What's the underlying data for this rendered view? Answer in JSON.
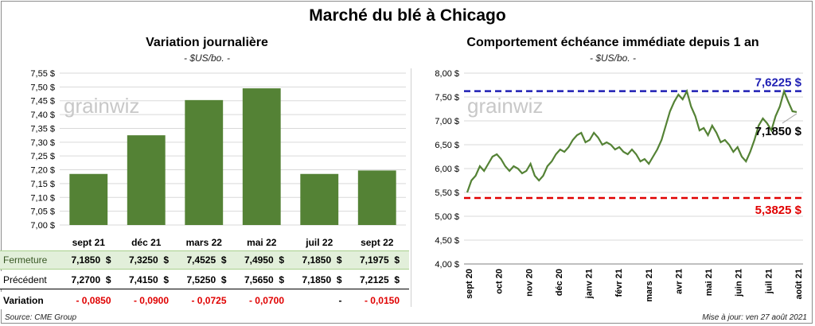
{
  "title": "Marché du blé à Chicago",
  "left": {
    "subtitle": "Variation journalière",
    "unit": "- $US/bo. -",
    "watermark": "grainwiz",
    "chart_data": {
      "type": "bar",
      "categories": [
        "sept 21",
        "déc 21",
        "mars 22",
        "mai 22",
        "juil 22",
        "sept 22"
      ],
      "values": [
        7.185,
        7.325,
        7.4525,
        7.495,
        7.185,
        7.1975
      ],
      "ylim": [
        7.0,
        7.55
      ],
      "yticks": [
        "7,00 $",
        "7,05 $",
        "7,10 $",
        "7,15 $",
        "7,20 $",
        "7,25 $",
        "7,30 $",
        "7,35 $",
        "7,40 $",
        "7,45 $",
        "7,50 $",
        "7,55 $"
      ],
      "bar_color": "#548235",
      "grid": true
    },
    "table": {
      "rows": [
        {
          "label": "Fermeture",
          "values": [
            "7,1850  $",
            "7,3250  $",
            "7,4525  $",
            "7,4950  $",
            "7,1850  $",
            "7,1975  $"
          ],
          "bg": "#e2efda"
        },
        {
          "label": "Précédent",
          "values": [
            "7,2700  $",
            "7,4150  $",
            "7,5250  $",
            "7,5650  $",
            "7,1850  $",
            "7,2125  $"
          ],
          "bg": "#ffffff"
        },
        {
          "label": "Variation",
          "values": [
            "- 0,0850",
            "- 0,0900",
            "- 0,0725",
            "- 0,0700",
            "-",
            "- 0,0150"
          ],
          "bg": "#ffffff"
        }
      ],
      "negative_color": "#e00000"
    },
    "source": "Source: CME Group"
  },
  "right": {
    "subtitle": "Comportement  échéance immédiate depuis 1 an",
    "unit": "- $US/bo. -",
    "watermark": "grainwiz",
    "chart_data": {
      "type": "line",
      "ylim": [
        4.0,
        8.0
      ],
      "yticks": [
        "4,00 $",
        "4,50 $",
        "5,00 $",
        "5,50 $",
        "6,00 $",
        "6,50 $",
        "7,00 $",
        "7,50 $",
        "8,00 $"
      ],
      "xticks": [
        "sept 20",
        "oct 20",
        "nov 20",
        "déc 20",
        "janv 21",
        "févr 21",
        "mars 21",
        "avr 21",
        "mai 21",
        "juin 21",
        "juil 21",
        "août 21"
      ],
      "series_color": "#548235",
      "values": [
        5.5,
        5.75,
        5.85,
        6.05,
        5.95,
        6.1,
        6.25,
        6.3,
        6.2,
        6.05,
        5.95,
        6.05,
        6.0,
        5.9,
        5.95,
        6.1,
        5.85,
        5.75,
        5.85,
        6.05,
        6.15,
        6.3,
        6.4,
        6.35,
        6.45,
        6.6,
        6.7,
        6.75,
        6.55,
        6.6,
        6.75,
        6.65,
        6.5,
        6.55,
        6.5,
        6.4,
        6.45,
        6.35,
        6.3,
        6.4,
        6.3,
        6.15,
        6.2,
        6.1,
        6.25,
        6.4,
        6.6,
        6.9,
        7.2,
        7.4,
        7.55,
        7.45,
        7.62,
        7.3,
        7.1,
        6.8,
        6.85,
        6.7,
        6.9,
        6.75,
        6.55,
        6.6,
        6.5,
        6.35,
        6.45,
        6.25,
        6.15,
        6.35,
        6.6,
        6.9,
        7.05,
        6.95,
        6.8,
        7.1,
        7.3,
        7.62,
        7.4,
        7.2,
        7.185
      ],
      "max_line": {
        "value": 7.6225,
        "label": "7,6225  $",
        "color": "#1f1fb4"
      },
      "min_line": {
        "value": 5.3825,
        "label": "5,3825  $",
        "color": "#e00000"
      },
      "last_label": "7,1850  $",
      "grid": true
    },
    "updated": "Mise à jour: ven 27 août 2021"
  }
}
